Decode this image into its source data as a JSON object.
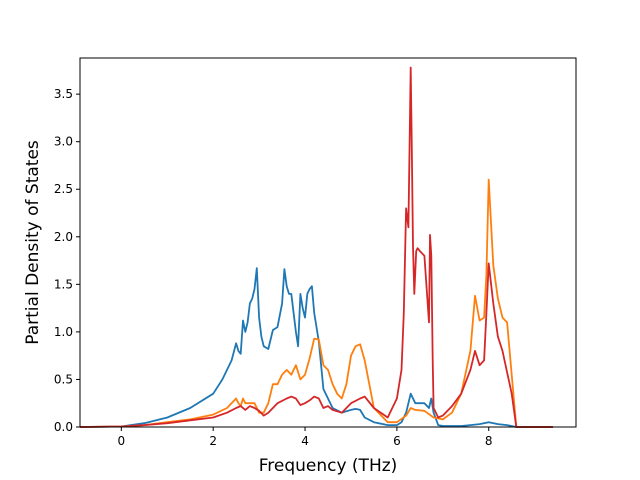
{
  "chart_data": {
    "type": "line",
    "title": "",
    "xlabel": "Frequency (THz)",
    "ylabel": "Partial Density of States",
    "xlim": [
      -0.9,
      9.9
    ],
    "ylim": [
      0.0,
      3.88
    ],
    "xticks": [
      0,
      2,
      4,
      6,
      8
    ],
    "yticks": [
      0.0,
      0.5,
      1.0,
      1.5,
      2.0,
      2.5,
      3.0,
      3.5
    ],
    "grid": false,
    "legend": "none",
    "series": [
      {
        "color": "#1f77b4",
        "x": [
          -0.9,
          0,
          0.5,
          1,
          1.5,
          2,
          2.2,
          2.4,
          2.5,
          2.55,
          2.6,
          2.65,
          2.7,
          2.75,
          2.8,
          2.85,
          2.9,
          2.95,
          3.0,
          3.05,
          3.1,
          3.2,
          3.3,
          3.4,
          3.5,
          3.55,
          3.6,
          3.65,
          3.7,
          3.8,
          3.85,
          3.9,
          3.95,
          4.0,
          4.05,
          4.1,
          4.15,
          4.2,
          4.3,
          4.4,
          4.6,
          4.8,
          5.0,
          5.1,
          5.2,
          5.3,
          5.5,
          5.8,
          6.0,
          6.1,
          6.2,
          6.3,
          6.4,
          6.5,
          6.6,
          6.7,
          6.75,
          6.8,
          6.9,
          7.0,
          7.4,
          7.6,
          7.8,
          8.0,
          8.2,
          8.4,
          8.6,
          9.4
        ],
        "y": [
          0,
          0.005,
          0.04,
          0.1,
          0.2,
          0.35,
          0.5,
          0.7,
          0.88,
          0.8,
          0.77,
          1.12,
          1.0,
          1.1,
          1.3,
          1.35,
          1.45,
          1.67,
          1.15,
          0.95,
          0.85,
          0.82,
          1.02,
          1.05,
          1.3,
          1.66,
          1.48,
          1.4,
          1.4,
          1.0,
          0.85,
          1.4,
          1.25,
          1.15,
          1.4,
          1.45,
          1.48,
          1.2,
          0.9,
          0.4,
          0.2,
          0.15,
          0.18,
          0.19,
          0.18,
          0.1,
          0.05,
          0.02,
          0.02,
          0.05,
          0.15,
          0.35,
          0.25,
          0.25,
          0.25,
          0.2,
          0.3,
          0.15,
          0.02,
          0.01,
          0.01,
          0.02,
          0.03,
          0.05,
          0.03,
          0.02,
          0.0,
          0.0
        ]
      },
      {
        "color": "#ff7f0e",
        "x": [
          -0.9,
          0,
          0.5,
          1,
          1.5,
          2,
          2.3,
          2.5,
          2.55,
          2.6,
          2.65,
          2.7,
          2.8,
          2.9,
          3.0,
          3.1,
          3.2,
          3.3,
          3.4,
          3.5,
          3.6,
          3.7,
          3.8,
          3.9,
          4.0,
          4.1,
          4.2,
          4.3,
          4.4,
          4.5,
          4.6,
          4.7,
          4.8,
          4.9,
          5.0,
          5.1,
          5.2,
          5.3,
          5.5,
          5.8,
          6.0,
          6.2,
          6.3,
          6.4,
          6.6,
          6.8,
          7.0,
          7.2,
          7.4,
          7.6,
          7.7,
          7.8,
          7.9,
          7.95,
          8.0,
          8.1,
          8.2,
          8.3,
          8.4,
          8.5,
          8.6,
          9.4
        ],
        "y": [
          0,
          0.005,
          0.02,
          0.05,
          0.08,
          0.13,
          0.2,
          0.3,
          0.25,
          0.22,
          0.3,
          0.25,
          0.25,
          0.25,
          0.15,
          0.15,
          0.25,
          0.45,
          0.45,
          0.55,
          0.6,
          0.55,
          0.65,
          0.5,
          0.55,
          0.72,
          0.93,
          0.92,
          0.65,
          0.6,
          0.45,
          0.35,
          0.3,
          0.45,
          0.75,
          0.85,
          0.87,
          0.7,
          0.2,
          0.05,
          0.05,
          0.12,
          0.2,
          0.18,
          0.17,
          0.1,
          0.08,
          0.15,
          0.35,
          0.8,
          1.38,
          1.12,
          1.15,
          1.6,
          2.6,
          1.7,
          1.35,
          1.15,
          1.1,
          0.55,
          0.0,
          0.0
        ]
      },
      {
        "color": "#d62728",
        "x": [
          -0.9,
          0,
          0.5,
          1,
          1.5,
          2,
          2.3,
          2.5,
          2.6,
          2.7,
          2.8,
          2.9,
          3.0,
          3.1,
          3.2,
          3.4,
          3.6,
          3.7,
          3.8,
          3.9,
          4.0,
          4.1,
          4.2,
          4.3,
          4.4,
          4.5,
          4.6,
          4.8,
          5.0,
          5.2,
          5.3,
          5.5,
          5.8,
          6.0,
          6.1,
          6.15,
          6.2,
          6.25,
          6.3,
          6.32,
          6.35,
          6.38,
          6.42,
          6.45,
          6.5,
          6.6,
          6.7,
          6.72,
          6.75,
          6.78,
          6.8,
          6.9,
          7.0,
          7.2,
          7.4,
          7.6,
          7.7,
          7.8,
          7.9,
          7.95,
          8.0,
          8.1,
          8.2,
          8.3,
          8.5,
          8.6,
          9.4
        ],
        "y": [
          0,
          0.005,
          0.02,
          0.04,
          0.07,
          0.1,
          0.15,
          0.2,
          0.22,
          0.18,
          0.22,
          0.2,
          0.17,
          0.12,
          0.15,
          0.25,
          0.3,
          0.32,
          0.3,
          0.23,
          0.25,
          0.28,
          0.32,
          0.3,
          0.2,
          0.22,
          0.18,
          0.15,
          0.25,
          0.3,
          0.32,
          0.2,
          0.1,
          0.3,
          0.6,
          1.2,
          2.3,
          2.1,
          3.78,
          3.1,
          1.9,
          1.4,
          1.85,
          1.88,
          1.85,
          1.8,
          1.1,
          2.02,
          1.8,
          0.7,
          0.2,
          0.1,
          0.12,
          0.22,
          0.35,
          0.6,
          0.8,
          0.65,
          0.7,
          1.2,
          1.72,
          1.3,
          0.95,
          0.8,
          0.35,
          0.0,
          0.0
        ]
      }
    ]
  }
}
